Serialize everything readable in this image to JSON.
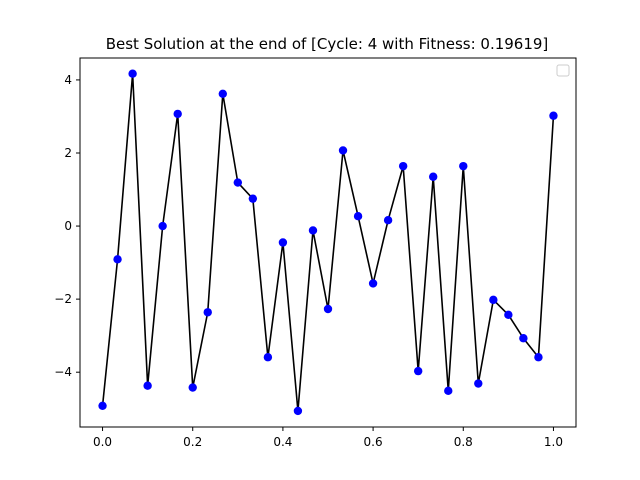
{
  "chart_data": {
    "type": "line",
    "title": "Best Solution at the end of [Cycle: 4 with Fitness: 0.19619]",
    "xlabel": "",
    "ylabel": "",
    "xlim": [
      -0.05,
      1.05
    ],
    "ylim": [
      -5.5,
      4.6
    ],
    "xticks": [
      0.0,
      0.2,
      0.4,
      0.6,
      0.8,
      1.0
    ],
    "xtick_labels": [
      "0.0",
      "0.2",
      "0.4",
      "0.6",
      "0.8",
      "1.0"
    ],
    "yticks": [
      -4,
      -2,
      0,
      2,
      4
    ],
    "ytick_labels": [
      "−4",
      "−2",
      "0",
      "2",
      "4"
    ],
    "grid": false,
    "legend": {
      "placement": "upper right",
      "entries": []
    },
    "series": [
      {
        "line_color": "#000000",
        "marker_color": "#0000ff",
        "marker": "circle",
        "x": [
          0.0,
          0.0333,
          0.0667,
          0.1,
          0.1333,
          0.1667,
          0.2,
          0.2333,
          0.2667,
          0.3,
          0.3333,
          0.3667,
          0.4,
          0.4333,
          0.4667,
          0.5,
          0.5333,
          0.5667,
          0.6,
          0.6333,
          0.6667,
          0.7,
          0.7333,
          0.7667,
          0.8,
          0.8333,
          0.8667,
          0.9,
          0.9333,
          0.9667,
          1.0
        ],
        "y": [
          -4.92,
          -0.91,
          4.17,
          -4.37,
          0.0,
          3.07,
          -4.42,
          -2.36,
          3.62,
          1.19,
          0.75,
          -3.59,
          -0.45,
          -5.06,
          -0.12,
          -2.27,
          2.07,
          0.27,
          -1.57,
          0.16,
          1.64,
          -3.97,
          1.35,
          -4.51,
          1.64,
          -4.31,
          -2.02,
          -2.43,
          -3.07,
          -3.59,
          3.02
        ]
      }
    ]
  }
}
